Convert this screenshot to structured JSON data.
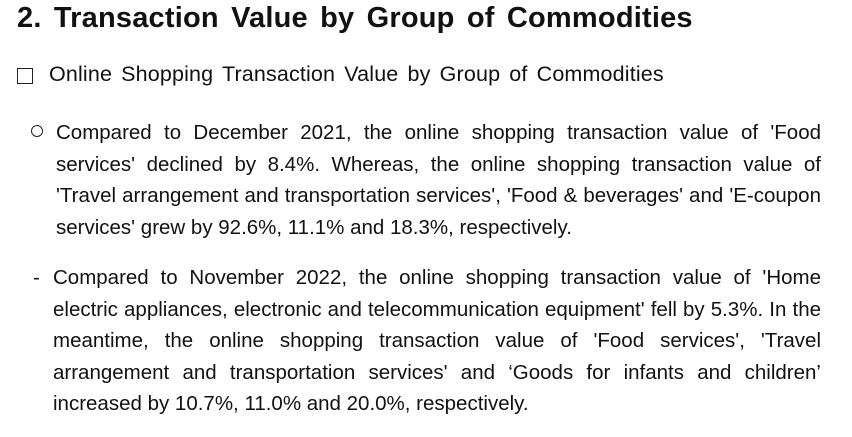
{
  "section": {
    "heading": "2. Transaction Value by Group of Commodities"
  },
  "subsection": {
    "icon": "checkbox-icon",
    "title": "Online Shopping Transaction Value by Group of Commodities"
  },
  "bullet": {
    "marker": "circle-bullet-icon",
    "text": "Compared to December 2021, the online shopping transaction value of 'Food services' declined by 8.4%. Whereas, the online shopping transaction value of 'Travel arrangement and transportation services', 'Food & beverages' and 'E-coupon services' grew by 92.6%, 11.1% and 18.3%, respectively."
  },
  "sub_bullet": {
    "marker": "-",
    "text": "Compared to November 2022, the online shopping transaction value of 'Home electric appliances, electronic and telecommunication equipment' fell by 5.3%. In the meantime, the online shopping transaction value of 'Food services', 'Travel arrangement and transportation services' and ‘Goods for infants and children’ increased by 10.7%, 11.0% and 20.0%, respectively."
  }
}
